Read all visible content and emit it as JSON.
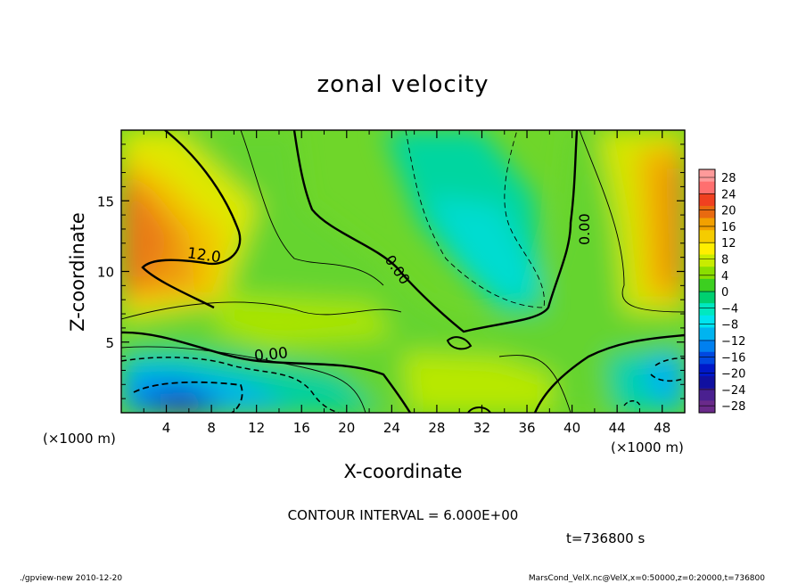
{
  "chart_data": {
    "type": "heatmap",
    "title": "zonal velocity",
    "xlabel": "X-coordinate",
    "ylabel": "Z-coordinate",
    "x_unit": "(×1000 m)",
    "z_unit": "(×1000 m)",
    "xlim": [
      0,
      50
    ],
    "ylim": [
      0,
      20
    ],
    "x_ticks": [
      "4",
      "8",
      "12",
      "16",
      "20",
      "24",
      "28",
      "32",
      "36",
      "40",
      "44",
      "48"
    ],
    "y_ticks": [
      "5",
      "10",
      "15"
    ],
    "colorbar": {
      "labels": [
        "28",
        "24",
        "20",
        "16",
        "12",
        "8",
        "4",
        "0",
        "−4",
        "−8",
        "−12",
        "−16",
        "−20",
        "−24",
        "−28"
      ],
      "colors": [
        "#ff9a9a",
        "#ff6f6f",
        "#f04020",
        "#e86a10",
        "#f2a000",
        "#f5cc00",
        "#ffee00",
        "#c8ec00",
        "#8ade00",
        "#3ccf20",
        "#00d070",
        "#00e8c0",
        "#00e4f0",
        "#00b4f0",
        "#0080f0",
        "#0048e0",
        "#0018c8",
        "#1010a0",
        "#4a2090",
        "#6a2a8a"
      ]
    },
    "contour_labels": [
      "12.0",
      "0.00",
      "0.00",
      "0.00"
    ],
    "grid": false
  },
  "footer": {
    "contour_interval": "CONTOUR INTERVAL = 6.000E+00",
    "time": "t=736800  s",
    "program": "./gpview-new  2010-12-20",
    "source": "MarsCond_VelX.nc@VelX,x=0:50000,z=0:20000,t=736800"
  }
}
